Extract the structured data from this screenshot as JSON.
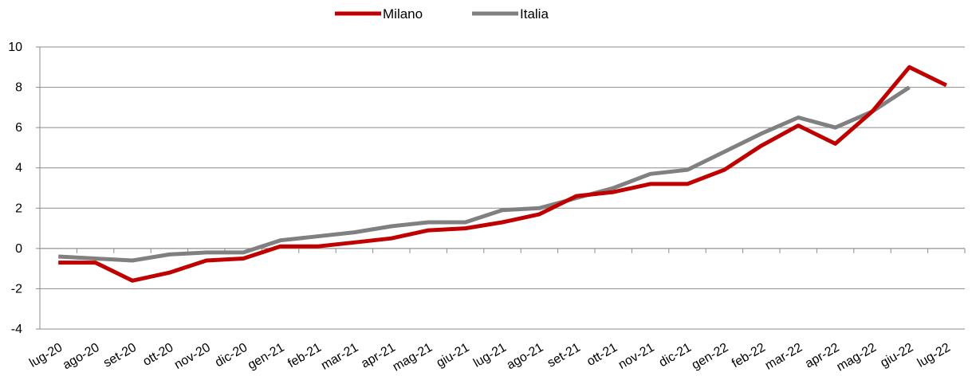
{
  "chart_data": {
    "type": "line",
    "categories": [
      "lug-20",
      "ago-20",
      "set-20",
      "ott-20",
      "nov-20",
      "dic-20",
      "gen-21",
      "feb-21",
      "mar-21",
      "apr-21",
      "mag-21",
      "giu-21",
      "lug-21",
      "ago-21",
      "set-21",
      "ott-21",
      "nov-21",
      "dic-21",
      "gen-22",
      "feb-22",
      "mar-22",
      "apr-22",
      "mag-22",
      "giu-22",
      "lug-22"
    ],
    "series": [
      {
        "name": "Milano",
        "color": "#c00000",
        "values": [
          -0.7,
          -0.7,
          -1.6,
          -1.2,
          -0.6,
          -0.5,
          0.1,
          0.1,
          0.3,
          0.5,
          0.9,
          1.0,
          1.3,
          1.7,
          2.6,
          2.8,
          3.2,
          3.2,
          3.9,
          5.1,
          6.1,
          5.2,
          6.8,
          9.0,
          8.1
        ]
      },
      {
        "name": "Italia",
        "color": "#808080",
        "values": [
          -0.4,
          -0.5,
          -0.6,
          -0.3,
          -0.2,
          -0.2,
          0.4,
          0.6,
          0.8,
          1.1,
          1.3,
          1.3,
          1.9,
          2.0,
          2.5,
          3.0,
          3.7,
          3.9,
          4.8,
          5.7,
          6.5,
          6.0,
          6.8,
          8.0,
          null
        ]
      }
    ],
    "ylim": [
      -4,
      10
    ],
    "yticks": [
      "-4",
      "-2",
      "0",
      "2",
      "4",
      "6",
      "8",
      "10"
    ],
    "grid": true,
    "legend": "top-center",
    "title": "",
    "xlabel": "",
    "ylabel": ""
  }
}
